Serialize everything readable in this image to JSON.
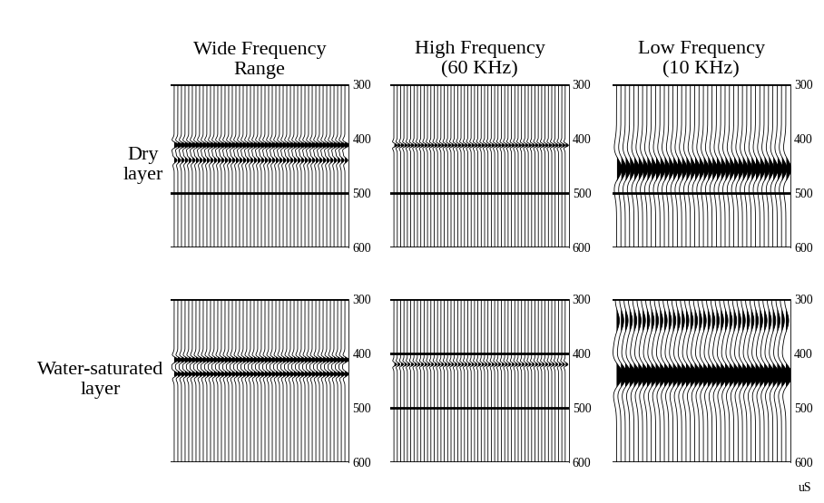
{
  "chart_data": [
    {
      "type": "wiggle",
      "title": "Wide Frequency\nRange",
      "ylabel": "Dry\nlayer",
      "ylim": [
        600,
        300
      ],
      "yticks": [
        300,
        400,
        500,
        600
      ],
      "tick_labels": "y",
      "color": "#000000",
      "traces": 48,
      "frequency": 40,
      "events": [
        {
          "time": 412,
          "amplitude": 1.0
        },
        {
          "time": 440,
          "amplitude": 0.6
        }
      ],
      "horizons": [
        500
      ]
    },
    {
      "type": "wiggle",
      "title": "High Frequency\n(60 KHz)",
      "ylim": [
        600,
        300
      ],
      "yticks": [
        300,
        400,
        500,
        600
      ],
      "tick_labels": "y",
      "color": "#000000",
      "traces": 52,
      "frequency": 60,
      "events": [
        {
          "time": 412,
          "amplitude": 0.7
        }
      ],
      "horizons": [
        500
      ]
    },
    {
      "type": "wiggle",
      "title": "Low Frequency\n(10 KHz)",
      "ylim": [
        600,
        300
      ],
      "yticks": [
        300,
        400,
        500,
        600
      ],
      "tick_labels": "y",
      "color": "#000000",
      "traces": 40,
      "frequency": 10,
      "events": [
        {
          "time": 455,
          "amplitude": 0.9
        }
      ],
      "horizons": [
        500
      ]
    },
    {
      "type": "wiggle",
      "ylabel": "Water-saturated\nlayer",
      "ylim": [
        600,
        300
      ],
      "yticks": [
        300,
        400,
        500,
        600
      ],
      "tick_labels": "y",
      "color": "#000000",
      "traces": 48,
      "frequency": 40,
      "events": [
        {
          "time": 412,
          "amplitude": 0.9
        },
        {
          "time": 438,
          "amplitude": 0.8
        }
      ],
      "horizons": []
    },
    {
      "type": "wiggle",
      "ylim": [
        600,
        300
      ],
      "yticks": [
        300,
        400,
        500,
        600
      ],
      "tick_labels": "y",
      "color": "#000000",
      "traces": 52,
      "frequency": 60,
      "events": [
        {
          "time": 420,
          "amplitude": 0.6
        }
      ],
      "horizons": [
        400,
        500
      ]
    },
    {
      "type": "wiggle",
      "xlabel": "uS",
      "ylim": [
        600,
        300
      ],
      "yticks": [
        300,
        400,
        500,
        600
      ],
      "tick_labels": "y",
      "color": "#000000",
      "traces": 40,
      "frequency": 10,
      "events": [
        {
          "time": 440,
          "amplitude": 1.2
        },
        {
          "time": 340,
          "amplitude": 0.5
        }
      ],
      "horizons": []
    }
  ]
}
